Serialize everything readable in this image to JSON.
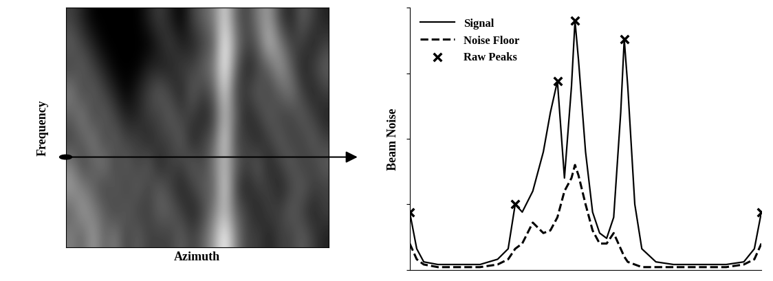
{
  "chart_data": [
    {
      "type": "heatmap",
      "x_label": "Azimuth",
      "y_label": "Frequency",
      "tick_labels": false,
      "cells": [
        [
          0.3,
          0.2,
          0.1,
          0.1,
          0.1,
          0.1,
          0.1,
          0.2,
          0.3,
          0.2,
          0.1,
          0.3,
          0.4,
          0.5,
          0.8,
          0.4,
          0.3,
          0.5,
          0.6,
          0.3,
          0.2,
          0.4,
          0.3,
          0.2
        ],
        [
          0.4,
          0.3,
          0.2,
          0.1,
          0.1,
          0.1,
          0.1,
          0.1,
          0.2,
          0.3,
          0.2,
          0.2,
          0.3,
          0.4,
          0.9,
          0.5,
          0.3,
          0.4,
          0.7,
          0.5,
          0.3,
          0.3,
          0.2,
          0.3
        ],
        [
          0.3,
          0.4,
          0.3,
          0.2,
          0.1,
          0.1,
          0.1,
          0.2,
          0.2,
          0.2,
          0.3,
          0.3,
          0.4,
          0.5,
          0.9,
          0.4,
          0.2,
          0.3,
          0.4,
          0.6,
          0.4,
          0.2,
          0.3,
          0.4
        ],
        [
          0.5,
          0.3,
          0.4,
          0.3,
          0.2,
          0.1,
          0.2,
          0.3,
          0.4,
          0.3,
          0.2,
          0.4,
          0.3,
          0.4,
          0.8,
          0.3,
          0.3,
          0.4,
          0.3,
          0.4,
          0.5,
          0.3,
          0.2,
          0.3
        ],
        [
          0.4,
          0.5,
          0.3,
          0.4,
          0.3,
          0.2,
          0.2,
          0.3,
          0.3,
          0.4,
          0.3,
          0.3,
          0.2,
          0.3,
          0.7,
          0.4,
          0.2,
          0.3,
          0.4,
          0.3,
          0.3,
          0.4,
          0.3,
          0.2
        ],
        [
          0.3,
          0.4,
          0.5,
          0.3,
          0.4,
          0.3,
          0.3,
          0.2,
          0.3,
          0.3,
          0.4,
          0.2,
          0.3,
          0.4,
          0.8,
          0.3,
          0.3,
          0.2,
          0.3,
          0.4,
          0.3,
          0.3,
          0.4,
          0.3
        ],
        [
          0.5,
          0.3,
          0.4,
          0.5,
          0.3,
          0.4,
          0.3,
          0.4,
          0.2,
          0.3,
          0.3,
          0.4,
          0.3,
          0.5,
          0.7,
          0.4,
          0.3,
          0.4,
          0.2,
          0.3,
          0.4,
          0.3,
          0.3,
          0.4
        ],
        [
          0.6,
          0.5,
          0.4,
          0.3,
          0.4,
          0.3,
          0.4,
          0.3,
          0.4,
          0.3,
          0.2,
          0.3,
          0.4,
          0.4,
          0.8,
          0.3,
          0.2,
          0.3,
          0.3,
          0.2,
          0.3,
          0.4,
          0.3,
          0.3
        ],
        [
          0.4,
          0.6,
          0.5,
          0.4,
          0.3,
          0.4,
          0.3,
          0.3,
          0.4,
          0.4,
          0.3,
          0.2,
          0.3,
          0.5,
          0.7,
          0.4,
          0.3,
          0.2,
          0.3,
          0.3,
          0.4,
          0.3,
          0.2,
          0.3
        ],
        [
          0.5,
          0.4,
          0.6,
          0.4,
          0.5,
          0.3,
          0.4,
          0.3,
          0.3,
          0.3,
          0.4,
          0.3,
          0.4,
          0.6,
          0.9,
          0.5,
          0.3,
          0.3,
          0.2,
          0.3,
          0.3,
          0.4,
          0.3,
          0.2
        ]
      ]
    },
    {
      "type": "line",
      "y_label": "Beam Noise",
      "tick_labels": false,
      "legend": "upper left",
      "xlim": [
        0,
        100
      ],
      "ylim": [
        0,
        100
      ],
      "yticks": [
        0,
        25,
        50,
        75,
        100
      ],
      "series": [
        {
          "name": "Signal",
          "color": "#000000",
          "line_style": "solid",
          "x": [
            0,
            2,
            4,
            8,
            15,
            20,
            25,
            28,
            30,
            32,
            35,
            38,
            40,
            42,
            44,
            46,
            47,
            48,
            50,
            52,
            54,
            56,
            58,
            60,
            61,
            62,
            64,
            66,
            70,
            75,
            80,
            85,
            90,
            95,
            98,
            100
          ],
          "values": [
            22,
            8,
            3,
            2,
            2,
            2,
            4,
            8,
            25,
            22,
            30,
            45,
            60,
            72,
            35,
            70,
            95,
            80,
            45,
            22,
            14,
            12,
            20,
            60,
            88,
            70,
            25,
            8,
            3,
            2,
            2,
            2,
            2,
            3,
            8,
            22
          ]
        },
        {
          "name": "Noise Floor",
          "color": "#000000",
          "line_style": "dashed",
          "x": [
            0,
            2,
            4,
            8,
            15,
            20,
            25,
            28,
            30,
            32,
            35,
            38,
            40,
            42,
            44,
            46,
            47,
            48,
            50,
            52,
            54,
            56,
            58,
            60,
            61,
            62,
            64,
            66,
            70,
            75,
            80,
            85,
            90,
            95,
            98,
            100
          ],
          "values": [
            10,
            4,
            2,
            1,
            1,
            1,
            2,
            4,
            8,
            10,
            18,
            14,
            15,
            20,
            30,
            35,
            40,
            36,
            25,
            15,
            10,
            10,
            14,
            8,
            5,
            3,
            2,
            1,
            1,
            1,
            1,
            1,
            1,
            2,
            4,
            10
          ]
        },
        {
          "name": "Raw Peaks",
          "color": "#000000",
          "type": "scatter",
          "marker": "x",
          "x": [
            0,
            30,
            42,
            47,
            61,
            100
          ],
          "values": [
            22,
            25,
            72,
            95,
            88,
            22
          ]
        }
      ]
    }
  ]
}
